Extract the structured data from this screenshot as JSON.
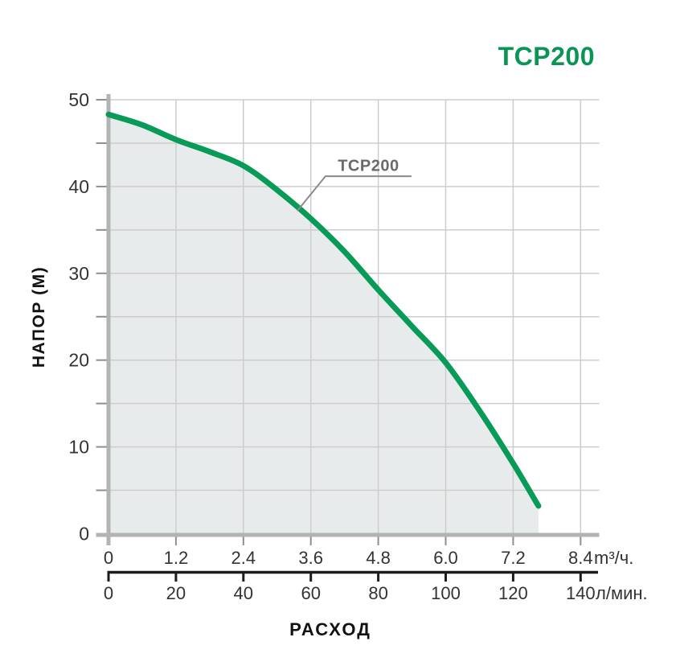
{
  "title": {
    "text": "TCP200"
  },
  "colors": {
    "curve_green": "#089B57",
    "title_green": "#0A9456",
    "area_fill": "#E8EBEC",
    "gridline": "#CDCDCD",
    "tick_mark": "#8F8F8F",
    "axis_grey": "#B3B3B3",
    "axis_black": "#1C1C1C",
    "annotation_grey": "#8A8A8A"
  },
  "chart_data": {
    "type": "area",
    "title": "TCP200",
    "series": [
      {
        "name": "TCP200",
        "points_flow_lmin_head_m": [
          [
            0,
            48.3
          ],
          [
            10,
            47.1
          ],
          [
            20,
            45.4
          ],
          [
            30,
            44.0
          ],
          [
            40,
            42.4
          ],
          [
            50,
            39.6
          ],
          [
            60,
            36.3
          ],
          [
            70,
            32.5
          ],
          [
            80,
            28.1
          ],
          [
            90,
            23.9
          ],
          [
            100,
            19.7
          ],
          [
            110,
            14.2
          ],
          [
            120,
            8.1
          ],
          [
            127.5,
            3.2
          ]
        ]
      }
    ],
    "x_axes": [
      {
        "label": "m³/ч.",
        "ticks": [
          "0",
          "1.2",
          "2.4",
          "3.6",
          "4.8",
          "6.0",
          "7.2",
          "8.4"
        ],
        "range": [
          0,
          8.4
        ]
      },
      {
        "label": "л/мин.",
        "ticks": [
          "0",
          "20",
          "40",
          "60",
          "80",
          "100",
          "120",
          "140"
        ],
        "range": [
          0,
          140
        ],
        "title": "РАСХОД"
      }
    ],
    "y_axis": {
      "title": "НАПОР (М)",
      "ticks": [
        "0",
        "10",
        "20",
        "30",
        "40",
        "50"
      ],
      "range": [
        0,
        50
      ],
      "grid_step_head_m": 5,
      "grid_step_flow_lmin": 20
    },
    "annotation": {
      "label": "TCP200",
      "attach_flow_lmin": 56,
      "attach_head_m": 37.2
    },
    "legend": "none",
    "grid": "on"
  }
}
